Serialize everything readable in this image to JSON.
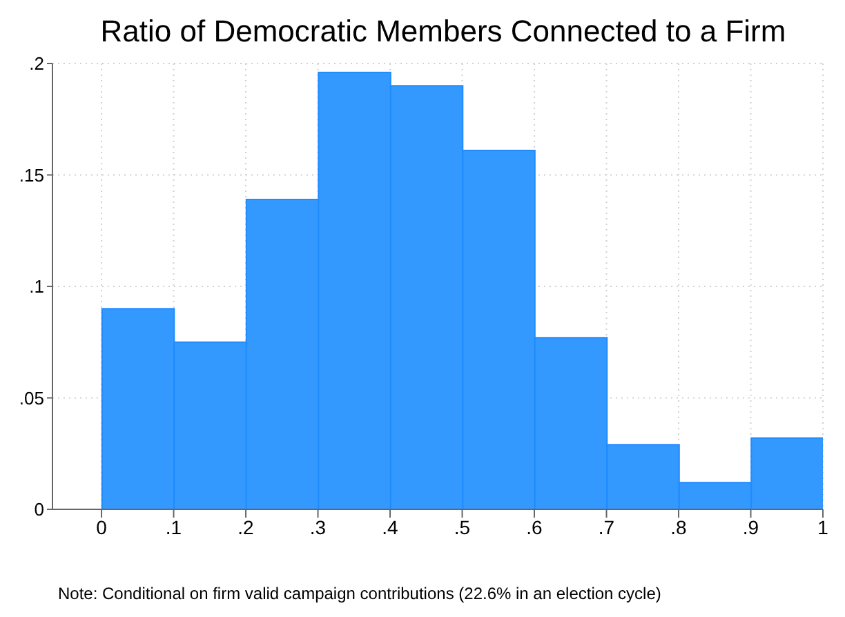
{
  "chart_data": {
    "type": "histogram",
    "title": "Ratio of Democratic Members Connected to a Firm",
    "bins": [
      0,
      0.1,
      0.2,
      0.3,
      0.4,
      0.5,
      0.6,
      0.7,
      0.8,
      0.9,
      1.0
    ],
    "values": [
      0.09,
      0.075,
      0.139,
      0.196,
      0.19,
      0.161,
      0.077,
      0.029,
      0.012,
      0.032
    ],
    "color": "#3399ff",
    "xlim": [
      -0.068,
      1.0
    ],
    "xticks": [
      0,
      {
        "value": 0.1,
        "label": ".1"
      },
      {
        "value": 0.2,
        "label": ".2"
      },
      {
        "value": 0.3,
        "label": ".3"
      },
      {
        "value": 0.4,
        "label": ".4"
      },
      {
        "value": 0.5,
        "label": ".5"
      },
      {
        "value": 0.6,
        "label": ".6"
      },
      {
        "value": 0.7,
        "label": ".7"
      },
      {
        "value": 0.8,
        "label": ".8"
      },
      {
        "value": 0.9,
        "label": ".9"
      },
      1
    ],
    "ylim": [
      0,
      0.2
    ],
    "yticks": [
      0,
      {
        "value": 0.05,
        "label": ".05"
      },
      {
        "value": 0.1,
        "label": ".1"
      },
      {
        "value": 0.15,
        "label": ".15"
      },
      {
        "value": 0.2,
        "label": ".2"
      }
    ],
    "grid": true,
    "annotations": [
      "Note: Conditional on firm valid campaign contributions (22.6% in an election cycle)"
    ]
  }
}
